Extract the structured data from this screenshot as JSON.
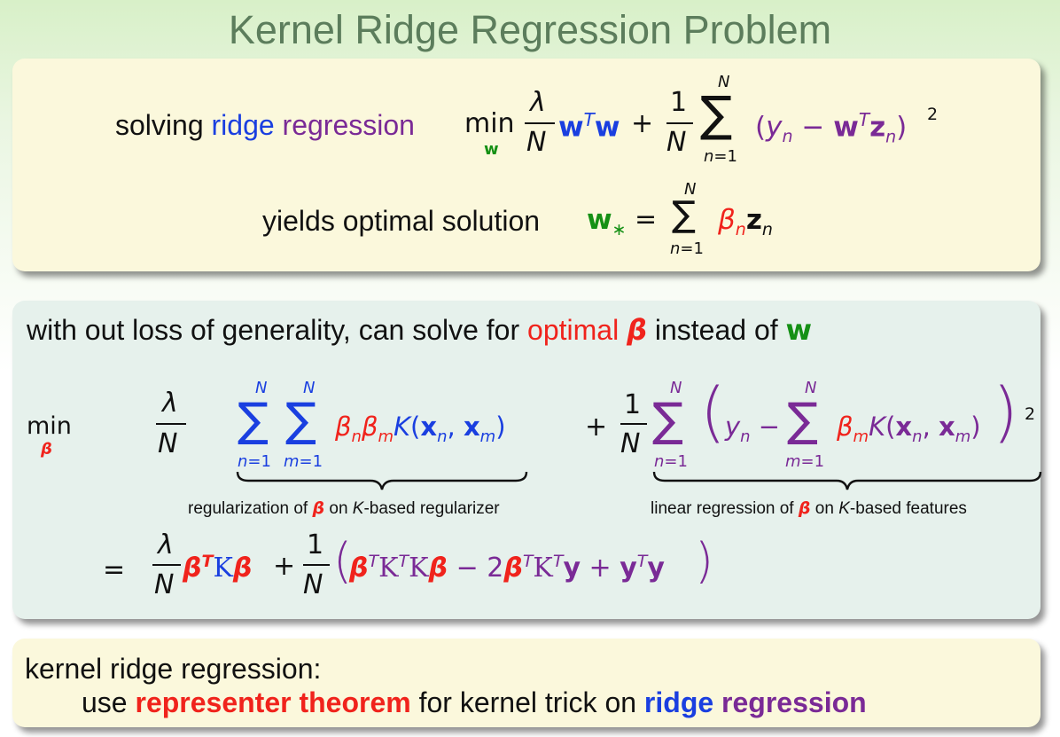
{
  "title": "Kernel Ridge Regression Problem",
  "box1": {
    "line1_prefix": "solving",
    "ridge": "ridge",
    "regression": "regression",
    "line2_text": "yields optimal solution"
  },
  "box2": {
    "intro_prefix": "with out loss of generality, can solve for",
    "intro_optimal": "optimal",
    "intro_mid": "instead of",
    "brace1_prefix": "regularization of",
    "brace1_mid": "on",
    "brace1_suffix": "-based regularizer",
    "brace2_prefix": "linear regression of",
    "brace2_mid": "on",
    "brace2_suffix": "-based features"
  },
  "box3": {
    "line1": "kernel ridge regression:",
    "line2_use": "use",
    "line2_rep": "representer theorem",
    "line2_mid": "for kernel trick on",
    "line2_ridge": "ridge",
    "line2_regression": "regression"
  },
  "colors": {
    "title": "#5c7d5c",
    "blue": "#1a3fe0",
    "purple": "#7a2a96",
    "red": "#f0231c",
    "green": "#159015",
    "yellow_box": "#fbf8dc",
    "green_box": "#e6f1ec"
  }
}
